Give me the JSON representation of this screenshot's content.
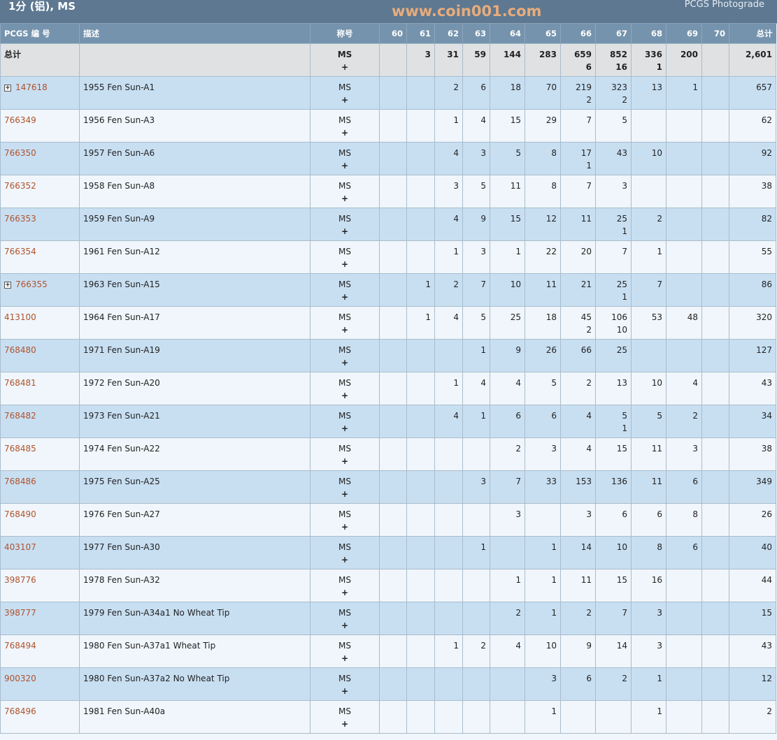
{
  "header": {
    "title": "1分 (铝), MS",
    "right_label": "PCGS Photograde"
  },
  "columns": {
    "id": "PCGS 编 号",
    "desc": "描述",
    "designation": "称号",
    "grades": [
      "60",
      "61",
      "62",
      "63",
      "64",
      "65",
      "66",
      "67",
      "68",
      "69",
      "70"
    ],
    "total": "总计"
  },
  "total_row": {
    "label": "总计",
    "designation": "MS",
    "plus": "+",
    "counts": [
      "",
      "3",
      "31",
      "59",
      "144",
      "283",
      "659",
      "852",
      "336",
      "200",
      ""
    ],
    "plus_counts": [
      "",
      "",
      "",
      "",
      "",
      "",
      "6",
      "16",
      "1",
      "",
      ""
    ],
    "total": "2,601"
  },
  "rows": [
    {
      "id": "147618",
      "expandable": true,
      "desc": "1955 Fen Sun-A1",
      "designation": "MS",
      "plus": "+",
      "counts": [
        "",
        "",
        "2",
        "6",
        "18",
        "70",
        "219",
        "323",
        "13",
        "1",
        ""
      ],
      "plus_counts": [
        "",
        "",
        "",
        "",
        "",
        "",
        "2",
        "2",
        "",
        "",
        ""
      ],
      "total": "657"
    },
    {
      "id": "766349",
      "desc": "1956 Fen Sun-A3",
      "designation": "MS",
      "plus": "+",
      "counts": [
        "",
        "",
        "1",
        "4",
        "15",
        "29",
        "7",
        "5",
        "",
        "",
        ""
      ],
      "total": "62"
    },
    {
      "id": "766350",
      "desc": "1957 Fen Sun-A6",
      "designation": "MS",
      "plus": "+",
      "counts": [
        "",
        "",
        "4",
        "3",
        "5",
        "8",
        "17",
        "43",
        "10",
        "",
        ""
      ],
      "plus_counts": [
        "",
        "",
        "",
        "",
        "",
        "",
        "1",
        "",
        "",
        "",
        ""
      ],
      "total": "92"
    },
    {
      "id": "766352",
      "desc": "1958 Fen Sun-A8",
      "designation": "MS",
      "plus": "+",
      "counts": [
        "",
        "",
        "3",
        "5",
        "11",
        "8",
        "7",
        "3",
        "",
        "",
        ""
      ],
      "total": "38"
    },
    {
      "id": "766353",
      "desc": "1959 Fen Sun-A9",
      "designation": "MS",
      "plus": "+",
      "counts": [
        "",
        "",
        "4",
        "9",
        "15",
        "12",
        "11",
        "25",
        "2",
        "",
        ""
      ],
      "plus_counts": [
        "",
        "",
        "",
        "",
        "",
        "",
        "",
        "1",
        "",
        "",
        ""
      ],
      "total": "82"
    },
    {
      "id": "766354",
      "desc": "1961 Fen Sun-A12",
      "designation": "MS",
      "plus": "+",
      "counts": [
        "",
        "",
        "1",
        "3",
        "1",
        "22",
        "20",
        "7",
        "1",
        "",
        ""
      ],
      "total": "55"
    },
    {
      "id": "766355",
      "expandable": true,
      "desc": "1963 Fen Sun-A15",
      "designation": "MS",
      "plus": "+",
      "counts": [
        "",
        "1",
        "2",
        "7",
        "10",
        "11",
        "21",
        "25",
        "7",
        "",
        ""
      ],
      "plus_counts": [
        "",
        "",
        "",
        "",
        "",
        "",
        "",
        "1",
        "",
        "",
        ""
      ],
      "total": "86"
    },
    {
      "id": "413100",
      "desc": "1964 Fen Sun-A17",
      "designation": "MS",
      "plus": "+",
      "counts": [
        "",
        "1",
        "4",
        "5",
        "25",
        "18",
        "45",
        "106",
        "53",
        "48",
        ""
      ],
      "plus_counts": [
        "",
        "",
        "",
        "",
        "",
        "",
        "2",
        "10",
        "",
        "",
        ""
      ],
      "total": "320"
    },
    {
      "id": "768480",
      "desc": "1971 Fen Sun-A19",
      "designation": "MS",
      "plus": "+",
      "counts": [
        "",
        "",
        "",
        "1",
        "9",
        "26",
        "66",
        "25",
        "",
        "",
        ""
      ],
      "total": "127"
    },
    {
      "id": "768481",
      "desc": "1972 Fen Sun-A20",
      "designation": "MS",
      "plus": "+",
      "counts": [
        "",
        "",
        "1",
        "4",
        "4",
        "5",
        "2",
        "13",
        "10",
        "4",
        ""
      ],
      "total": "43"
    },
    {
      "id": "768482",
      "desc": "1973 Fen Sun-A21",
      "designation": "MS",
      "plus": "+",
      "counts": [
        "",
        "",
        "4",
        "1",
        "6",
        "6",
        "4",
        "5",
        "5",
        "2",
        ""
      ],
      "plus_counts": [
        "",
        "",
        "",
        "",
        "",
        "",
        "",
        "1",
        "",
        "",
        ""
      ],
      "total": "34"
    },
    {
      "id": "768485",
      "desc": "1974 Fen Sun-A22",
      "designation": "MS",
      "plus": "+",
      "counts": [
        "",
        "",
        "",
        "",
        "2",
        "3",
        "4",
        "15",
        "11",
        "3",
        ""
      ],
      "total": "38"
    },
    {
      "id": "768486",
      "desc": "1975 Fen Sun-A25",
      "designation": "MS",
      "plus": "+",
      "counts": [
        "",
        "",
        "",
        "3",
        "7",
        "33",
        "153",
        "136",
        "11",
        "6",
        ""
      ],
      "total": "349"
    },
    {
      "id": "768490",
      "desc": "1976 Fen Sun-A27",
      "designation": "MS",
      "plus": "+",
      "counts": [
        "",
        "",
        "",
        "",
        "3",
        "",
        "3",
        "6",
        "6",
        "8",
        ""
      ],
      "total": "26"
    },
    {
      "id": "403107",
      "desc": "1977 Fen Sun-A30",
      "designation": "MS",
      "plus": "+",
      "counts": [
        "",
        "",
        "",
        "1",
        "",
        "1",
        "14",
        "10",
        "8",
        "6",
        ""
      ],
      "total": "40"
    },
    {
      "id": "398776",
      "desc": "1978 Fen Sun-A32",
      "designation": "MS",
      "plus": "+",
      "counts": [
        "",
        "",
        "",
        "",
        "1",
        "1",
        "11",
        "15",
        "16",
        "",
        ""
      ],
      "total": "44"
    },
    {
      "id": "398777",
      "desc": "1979 Fen Sun-A34a1 No Wheat Tip",
      "designation": "MS",
      "plus": "+",
      "counts": [
        "",
        "",
        "",
        "",
        "2",
        "1",
        "2",
        "7",
        "3",
        "",
        ""
      ],
      "total": "15"
    },
    {
      "id": "768494",
      "desc": "1980 Fen Sun-A37a1 Wheat Tip",
      "designation": "MS",
      "plus": "+",
      "counts": [
        "",
        "",
        "1",
        "2",
        "4",
        "10",
        "9",
        "14",
        "3",
        "",
        ""
      ],
      "total": "43"
    },
    {
      "id": "900320",
      "desc": "1980 Fen Sun-A37a2 No Wheat Tip",
      "designation": "MS",
      "plus": "+",
      "counts": [
        "",
        "",
        "",
        "",
        "",
        "3",
        "6",
        "2",
        "1",
        "",
        ""
      ],
      "total": "12"
    },
    {
      "id": "768496",
      "desc": "1981 Fen Sun-A40a",
      "designation": "MS",
      "plus": "+",
      "counts": [
        "",
        "",
        "",
        "",
        "",
        "1",
        "",
        "",
        "1",
        "",
        ""
      ],
      "total": "2"
    }
  ],
  "watermark": "www.coin001.com",
  "colors": {
    "header": "#5e7891",
    "column_header": "#7593ad",
    "row_alt": "#c8dff2",
    "row": "#f0f6fb",
    "link": "#b0522c"
  }
}
